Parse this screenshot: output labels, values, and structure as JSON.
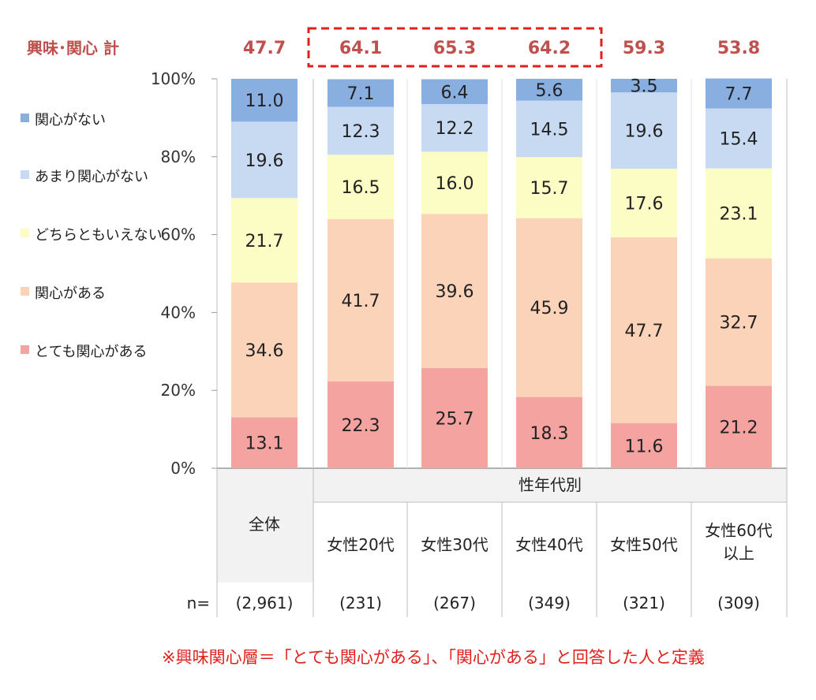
{
  "chart_data": {
    "type": "bar",
    "stacked": true,
    "title": "",
    "interest_total_label": "興味･関心 計",
    "interest_totals": [
      "47.7",
      "64.1",
      "65.3",
      "64.2",
      "59.3",
      "53.8"
    ],
    "highlight_groups": [
      1,
      2,
      3
    ],
    "ylim": [
      0,
      100
    ],
    "yticks": [
      "0%",
      "20%",
      "40%",
      "60%",
      "80%",
      "100%"
    ],
    "group_header": "性年代別",
    "categories": [
      {
        "lines": [
          "全体"
        ]
      },
      {
        "lines": [
          "女性20代"
        ]
      },
      {
        "lines": [
          "女性30代"
        ]
      },
      {
        "lines": [
          "女性40代"
        ]
      },
      {
        "lines": [
          "女性50代"
        ]
      },
      {
        "lines": [
          "女性60代",
          "以上"
        ]
      }
    ],
    "n_label": "n=",
    "n_values": [
      "(2,961)",
      "(231)",
      "(267)",
      "(349)",
      "(321)",
      "(309)"
    ],
    "series": [
      {
        "name": "とても関心がある",
        "color": "#f4a3a1",
        "values": [
          13.1,
          22.3,
          25.7,
          18.3,
          11.6,
          21.2
        ]
      },
      {
        "name": "関心がある",
        "color": "#fbd3b8",
        "values": [
          34.6,
          41.7,
          39.6,
          45.9,
          47.7,
          32.7
        ]
      },
      {
        "name": "どちらともいえない",
        "color": "#fcfdc5",
        "values": [
          21.7,
          16.5,
          16.0,
          15.7,
          17.6,
          23.1
        ]
      },
      {
        "name": "あまり関心がない",
        "color": "#c8daf1",
        "values": [
          19.6,
          12.3,
          12.2,
          14.5,
          19.6,
          15.4
        ]
      },
      {
        "name": "関心がない",
        "color": "#89aee0",
        "values": [
          11.0,
          7.1,
          6.4,
          5.6,
          3.5,
          7.7
        ]
      }
    ],
    "legend_order": [
      "関心がない",
      "あまり関心がない",
      "どちらともいえない",
      "関心がある",
      "とても関心がある"
    ],
    "accent_color": "#c0504d",
    "footnote": "※興味関心層＝「とても関心がある」、「関心がある」と回答した人と定義"
  }
}
